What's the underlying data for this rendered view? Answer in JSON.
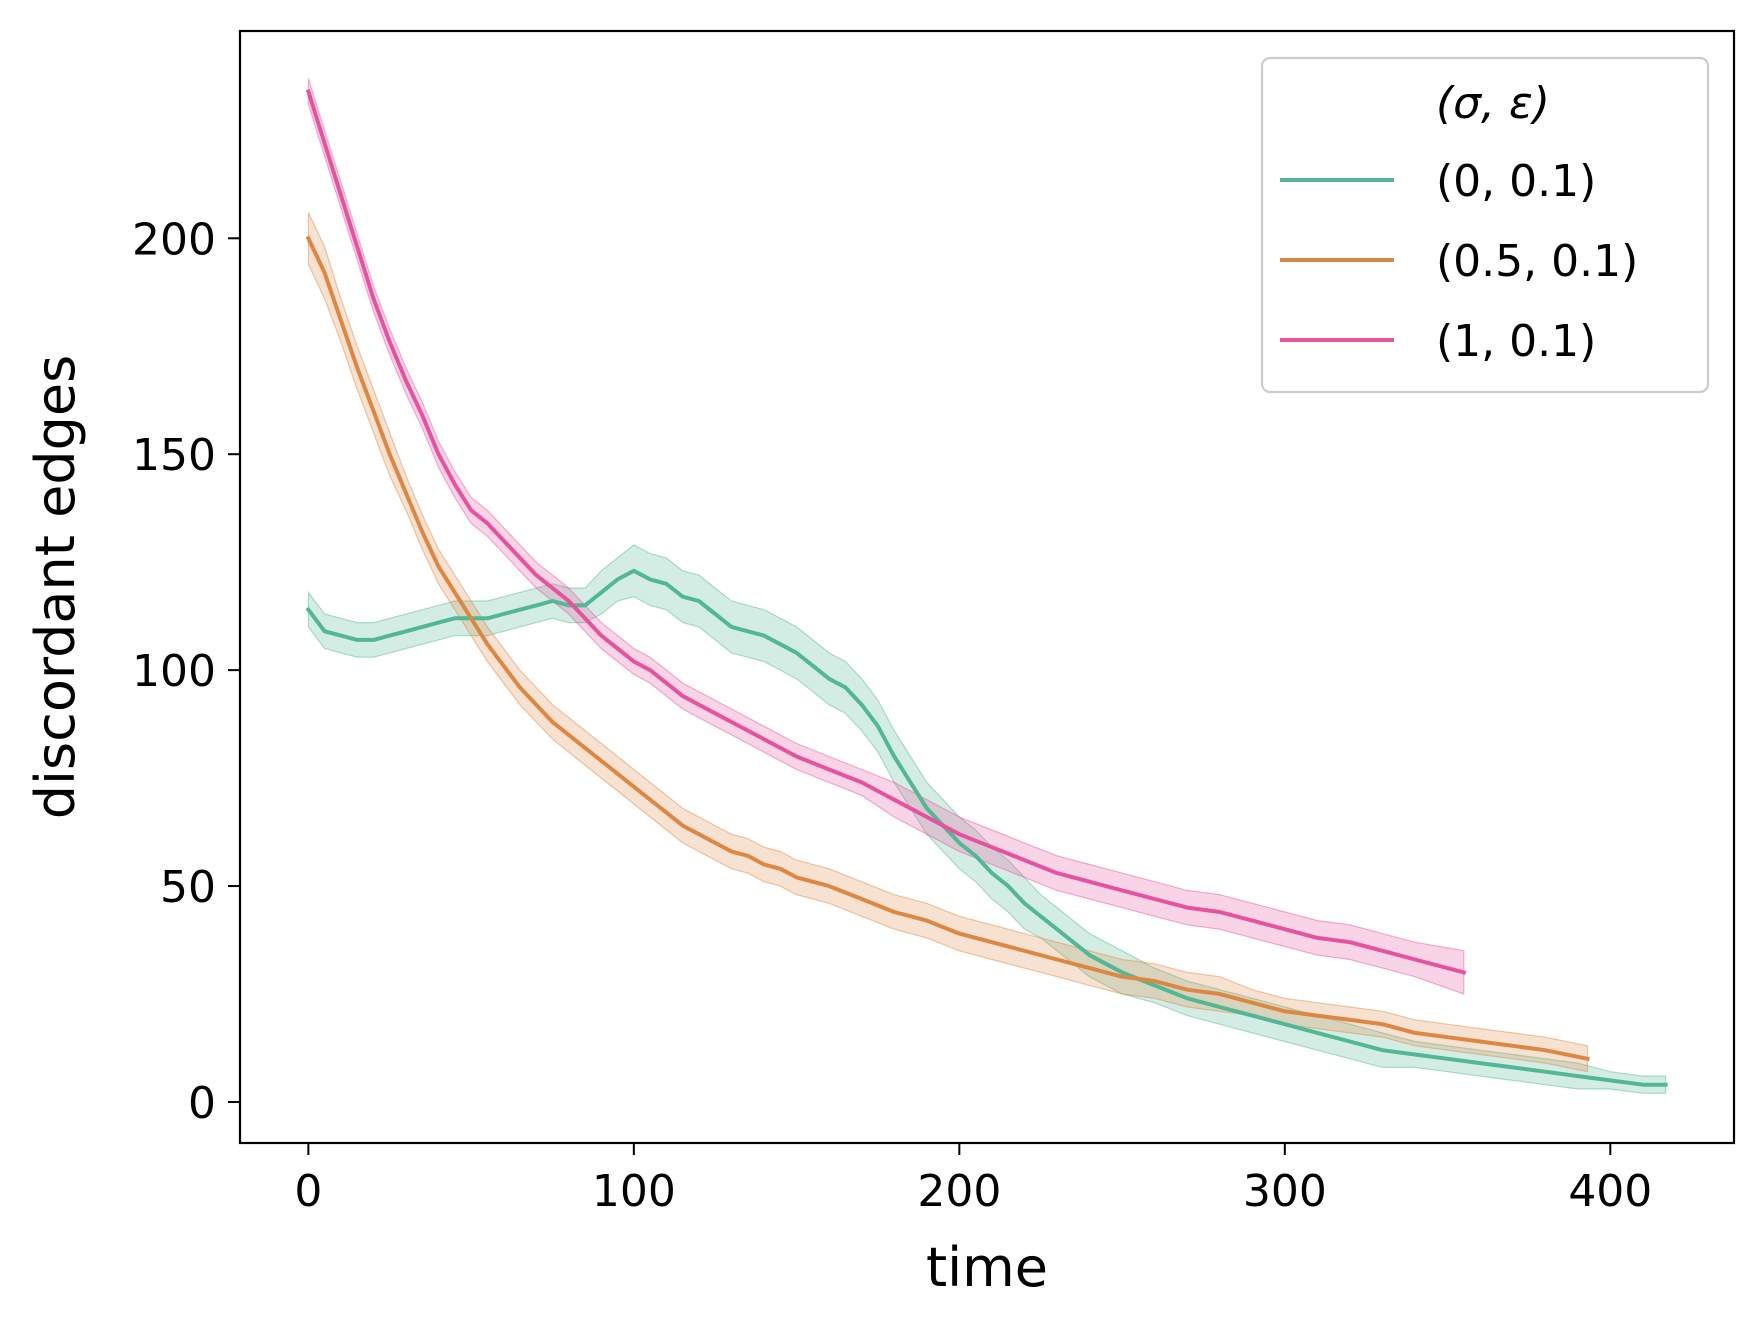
{
  "chart_data": {
    "type": "line",
    "title": "",
    "xlabel": "time",
    "ylabel": "discordant edges",
    "xlim": [
      -21,
      438
    ],
    "ylim": [
      -9.5,
      248
    ],
    "xticks": [
      0,
      100,
      200,
      300,
      400
    ],
    "yticks": [
      0,
      50,
      100,
      150,
      200
    ],
    "legend": {
      "title": "(σ, ε)",
      "placement": "top-right"
    },
    "series": [
      {
        "name": "(0, 0.1)",
        "color": "#52b795",
        "x": [
          0,
          5,
          10,
          15,
          20,
          25,
          30,
          35,
          40,
          45,
          50,
          55,
          60,
          65,
          70,
          75,
          80,
          85,
          90,
          95,
          100,
          105,
          110,
          115,
          120,
          125,
          130,
          135,
          140,
          145,
          150,
          155,
          160,
          165,
          170,
          175,
          180,
          185,
          190,
          195,
          200,
          205,
          210,
          215,
          220,
          225,
          230,
          235,
          240,
          245,
          250,
          260,
          270,
          280,
          290,
          300,
          310,
          320,
          330,
          340,
          350,
          360,
          370,
          380,
          390,
          400,
          410,
          417
        ],
        "y": [
          114,
          109,
          108,
          107,
          107,
          108,
          109,
          110,
          111,
          112,
          112,
          112,
          113,
          114,
          115,
          116,
          115,
          115,
          118,
          121,
          123,
          121,
          120,
          117,
          116,
          113,
          110,
          109,
          108,
          106,
          104,
          101,
          98,
          96,
          92,
          87,
          80,
          74,
          68,
          64,
          60,
          57,
          53,
          50,
          46,
          43,
          40,
          37,
          34,
          32,
          30,
          27,
          24,
          22,
          20,
          18,
          16,
          14,
          12,
          11,
          10,
          9,
          8,
          7,
          6,
          5,
          4,
          4
        ],
        "band": [
          4,
          4,
          4,
          4,
          4,
          4,
          4,
          4,
          4,
          4,
          4,
          4,
          4,
          4,
          4,
          4,
          4,
          4,
          5,
          5,
          6,
          6,
          6,
          6,
          6,
          6,
          6,
          6,
          6,
          6,
          6,
          6,
          6,
          6,
          6,
          6,
          6,
          6,
          6,
          6,
          6,
          6,
          6,
          6,
          6,
          5,
          5,
          5,
          5,
          5,
          5,
          4,
          4,
          4,
          4,
          4,
          4,
          4,
          4,
          3,
          3,
          3,
          3,
          3,
          3,
          2,
          2,
          2
        ]
      },
      {
        "name": "(0.5, 0.1)",
        "color": "#de8742",
        "x": [
          0,
          5,
          10,
          15,
          20,
          25,
          30,
          35,
          40,
          45,
          50,
          55,
          60,
          65,
          70,
          75,
          80,
          85,
          90,
          95,
          100,
          105,
          110,
          115,
          120,
          125,
          130,
          135,
          140,
          145,
          150,
          160,
          170,
          180,
          190,
          200,
          210,
          220,
          230,
          240,
          250,
          260,
          270,
          280,
          290,
          300,
          310,
          320,
          330,
          340,
          350,
          360,
          370,
          380,
          393
        ],
        "y": [
          200,
          192,
          181,
          170,
          160,
          150,
          141,
          132,
          124,
          118,
          112,
          106,
          101,
          96,
          92,
          88,
          85,
          82,
          79,
          76,
          73,
          70,
          67,
          64,
          62,
          60,
          58,
          57,
          55,
          54,
          52,
          50,
          47,
          44,
          42,
          39,
          37,
          35,
          33,
          31,
          29,
          28,
          26,
          25,
          23,
          21,
          20,
          19,
          18,
          16,
          15,
          14,
          13,
          12,
          10
        ],
        "band": [
          6,
          6,
          5,
          5,
          5,
          5,
          4,
          4,
          4,
          4,
          4,
          4,
          4,
          4,
          4,
          4,
          4,
          4,
          4,
          4,
          4,
          4,
          4,
          4,
          4,
          4,
          4,
          4,
          4,
          4,
          4,
          4,
          4,
          4,
          4,
          4,
          4,
          4,
          4,
          4,
          4,
          4,
          4,
          4,
          3,
          3,
          3,
          3,
          3,
          3,
          3,
          3,
          3,
          3,
          3
        ]
      },
      {
        "name": "(1, 0.1)",
        "color": "#e7529e",
        "x": [
          0,
          5,
          10,
          15,
          20,
          25,
          30,
          35,
          40,
          45,
          50,
          55,
          60,
          65,
          70,
          75,
          80,
          85,
          90,
          95,
          100,
          105,
          110,
          115,
          120,
          125,
          130,
          135,
          140,
          145,
          150,
          160,
          170,
          180,
          190,
          200,
          210,
          220,
          230,
          240,
          250,
          260,
          270,
          280,
          290,
          300,
          310,
          320,
          330,
          340,
          355
        ],
        "y": [
          234,
          222,
          210,
          198,
          186,
          176,
          167,
          159,
          150,
          143,
          137,
          134,
          130,
          126,
          122,
          119,
          116,
          112,
          108,
          105,
          102,
          100,
          97,
          94,
          92,
          90,
          88,
          86,
          84,
          82,
          80,
          77,
          74,
          70,
          66,
          62,
          59,
          56,
          53,
          51,
          49,
          47,
          45,
          44,
          42,
          40,
          38,
          37,
          35,
          33,
          30
        ],
        "band": [
          3,
          3,
          3,
          3,
          3,
          3,
          3,
          3,
          3,
          3,
          3,
          3,
          3,
          3,
          3,
          3,
          3,
          3,
          3,
          3,
          3,
          3,
          3,
          3,
          3,
          3,
          3,
          3,
          3,
          3,
          3,
          3,
          3,
          4,
          4,
          4,
          4,
          4,
          4,
          4,
          4,
          4,
          4,
          4,
          4,
          4,
          4,
          4,
          4,
          4,
          5
        ]
      }
    ]
  }
}
